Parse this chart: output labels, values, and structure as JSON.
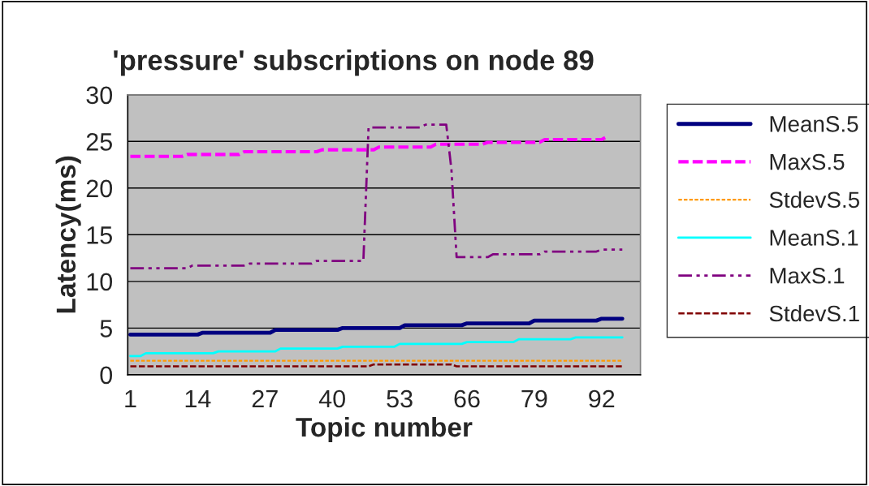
{
  "chart_data": {
    "type": "line",
    "title": "'pressure' subscriptions on node 89",
    "xlabel": "Topic number",
    "ylabel": "Latency(ms)",
    "xlim": [
      0.5,
      99.5
    ],
    "xticks": [
      1,
      14,
      27,
      40,
      53,
      66,
      79,
      92
    ],
    "ylim": [
      0,
      30
    ],
    "yticks": [
      0,
      5,
      10,
      15,
      20,
      25,
      30
    ],
    "grid": "y",
    "legend": "right",
    "series": [
      {
        "name": "MeanS.5",
        "color": "#000080",
        "line_style": "solid",
        "x": [
          1,
          14,
          15,
          28,
          29,
          41,
          42,
          53,
          54,
          65,
          66,
          78,
          79,
          91,
          92,
          96
        ],
        "values": [
          4.3,
          4.3,
          4.5,
          4.5,
          4.8,
          4.8,
          5.0,
          5.0,
          5.3,
          5.3,
          5.5,
          5.5,
          5.8,
          5.8,
          6.0,
          6.0
        ]
      },
      {
        "name": "MaxS.5",
        "color": "#ff00ff",
        "line_style": "dashed",
        "x": [
          1,
          11,
          12,
          22,
          23,
          37,
          38,
          48,
          49,
          59,
          60,
          69,
          70,
          80,
          81,
          92,
          93
        ],
        "values": [
          23.4,
          23.4,
          23.6,
          23.6,
          23.9,
          23.9,
          24.1,
          24.1,
          24.4,
          24.4,
          24.7,
          24.7,
          24.9,
          24.9,
          25.2,
          25.2,
          25.5
        ]
      },
      {
        "name": "StdevS.5",
        "color": "#ff9900",
        "line_style": "dotted",
        "x": [
          1,
          96
        ],
        "values": [
          1.5,
          1.5
        ]
      },
      {
        "name": "MeanS.1",
        "color": "#00ffff",
        "line_style": "solid",
        "x": [
          1,
          3,
          4,
          17,
          18,
          29,
          30,
          41,
          42,
          52,
          53,
          65,
          66,
          75,
          76,
          86,
          87,
          96
        ],
        "values": [
          2.0,
          2.0,
          2.3,
          2.3,
          2.5,
          2.5,
          2.8,
          2.8,
          3.0,
          3.0,
          3.3,
          3.3,
          3.5,
          3.5,
          3.8,
          3.8,
          4.0,
          4.0
        ]
      },
      {
        "name": "MaxS.1",
        "color": "#800080",
        "line_style": "dashdot",
        "x": [
          1,
          12,
          13,
          23,
          24,
          36,
          37,
          46,
          47,
          57,
          58,
          62,
          63,
          64,
          70,
          71,
          80,
          81,
          91,
          92,
          96
        ],
        "values": [
          11.4,
          11.4,
          11.7,
          11.7,
          11.9,
          11.9,
          12.2,
          12.2,
          26.5,
          26.5,
          26.8,
          26.8,
          22.0,
          12.6,
          12.6,
          12.9,
          12.9,
          13.2,
          13.2,
          13.4,
          13.4
        ]
      },
      {
        "name": "StdevS.1",
        "color": "#800000",
        "line_style": "dashed",
        "x": [
          1,
          47,
          48,
          63,
          64,
          96
        ],
        "values": [
          0.9,
          0.9,
          1.1,
          1.1,
          0.9,
          0.9
        ]
      }
    ]
  }
}
